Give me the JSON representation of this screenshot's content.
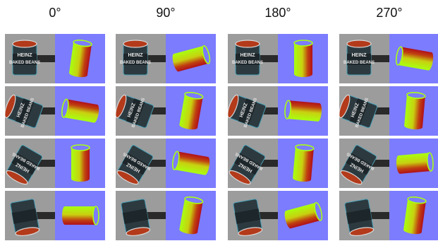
{
  "headers": [
    "0°",
    "90°",
    "180°",
    "270°"
  ],
  "colors": {
    "background": "#ffffff",
    "normal_map_blue": "#7c7cff",
    "photo_gray": "#8f8f8f",
    "can_dark": "#2c3a40",
    "beans_orange": "#b33a1a",
    "gradient_red": "#b0101a",
    "gradient_green": "#a8ff10"
  },
  "rows": [
    {
      "photo_label": "HEINZ BAKED BEANS",
      "photo_view": "can-upright-front"
    },
    {
      "photo_label": "HEINZ BAKED BEANS",
      "photo_view": "can-tilted-lid-right"
    },
    {
      "photo_label": "HEINZ BAKED BEANS",
      "photo_view": "can-tilted-lid-down"
    },
    {
      "photo_label": "",
      "photo_view": "can-lid-down-bottom"
    }
  ]
}
